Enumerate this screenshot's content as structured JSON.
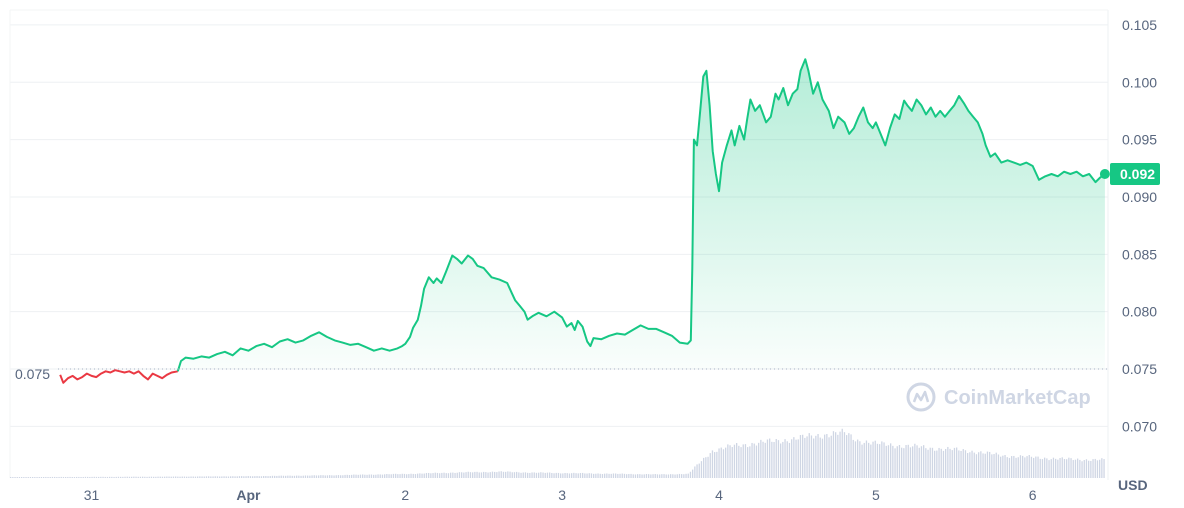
{
  "watermark": "CoinMarketCap",
  "colors": {
    "up": "#16c784",
    "down": "#ea3943",
    "volume": "#cfd6e4",
    "grid": "#eef0f3",
    "text": "#58667e"
  },
  "chart_data": {
    "type": "line",
    "currency": "USD",
    "ylim": [
      0.0655,
      0.1063
    ],
    "yticks": [
      "0.105",
      "0.100",
      "0.095",
      "0.090",
      "0.085",
      "0.080",
      "0.075",
      "0.070"
    ],
    "ytick_values": [
      0.105,
      0.1,
      0.095,
      0.09,
      0.085,
      0.08,
      0.075,
      0.07
    ],
    "ylabel": "USD",
    "xlabels": [
      {
        "label": "31",
        "day": 0.0,
        "bold": false
      },
      {
        "label": "Apr",
        "day": 1.0,
        "bold": true
      },
      {
        "label": "2",
        "day": 2.0,
        "bold": false
      },
      {
        "label": "3",
        "day": 3.0,
        "bold": false
      },
      {
        "label": "4",
        "day": 4.0,
        "bold": false
      },
      {
        "label": "5",
        "day": 5.0,
        "bold": false
      },
      {
        "label": "6",
        "day": 6.0,
        "bold": false
      }
    ],
    "x_range": [
      -0.52,
      6.48
    ],
    "open_price": 0.075,
    "open_price_label": "0.075",
    "current_price": 0.092,
    "current_price_label": "0.092",
    "price_series": [
      [
        -0.2,
        0.0745
      ],
      [
        -0.18,
        0.0738
      ],
      [
        -0.15,
        0.0742
      ],
      [
        -0.12,
        0.0744
      ],
      [
        -0.09,
        0.0741
      ],
      [
        -0.06,
        0.0743
      ],
      [
        -0.03,
        0.0746
      ],
      [
        0.0,
        0.0744
      ],
      [
        0.03,
        0.0743
      ],
      [
        0.06,
        0.0746
      ],
      [
        0.09,
        0.0748
      ],
      [
        0.12,
        0.0747
      ],
      [
        0.15,
        0.0749
      ],
      [
        0.18,
        0.0748
      ],
      [
        0.21,
        0.0747
      ],
      [
        0.24,
        0.0748
      ],
      [
        0.27,
        0.0746
      ],
      [
        0.3,
        0.0748
      ],
      [
        0.33,
        0.0744
      ],
      [
        0.36,
        0.0741
      ],
      [
        0.39,
        0.0746
      ],
      [
        0.42,
        0.0744
      ],
      [
        0.45,
        0.0742
      ],
      [
        0.48,
        0.0745
      ],
      [
        0.51,
        0.0747
      ],
      [
        0.55,
        0.0748
      ],
      [
        0.57,
        0.0757
      ],
      [
        0.6,
        0.076
      ],
      [
        0.65,
        0.0759
      ],
      [
        0.7,
        0.0761
      ],
      [
        0.75,
        0.076
      ],
      [
        0.8,
        0.0763
      ],
      [
        0.85,
        0.0765
      ],
      [
        0.9,
        0.0762
      ],
      [
        0.95,
        0.0768
      ],
      [
        1.0,
        0.0766
      ],
      [
        1.05,
        0.077
      ],
      [
        1.1,
        0.0772
      ],
      [
        1.15,
        0.0769
      ],
      [
        1.2,
        0.0774
      ],
      [
        1.25,
        0.0776
      ],
      [
        1.3,
        0.0773
      ],
      [
        1.35,
        0.0775
      ],
      [
        1.4,
        0.0779
      ],
      [
        1.45,
        0.0782
      ],
      [
        1.5,
        0.0778
      ],
      [
        1.55,
        0.0775
      ],
      [
        1.6,
        0.0773
      ],
      [
        1.65,
        0.0771
      ],
      [
        1.7,
        0.0772
      ],
      [
        1.75,
        0.0769
      ],
      [
        1.8,
        0.0766
      ],
      [
        1.85,
        0.0768
      ],
      [
        1.9,
        0.0766
      ],
      [
        1.95,
        0.0768
      ],
      [
        1.98,
        0.077
      ],
      [
        2.0,
        0.0772
      ],
      [
        2.03,
        0.0778
      ],
      [
        2.05,
        0.0786
      ],
      [
        2.08,
        0.0793
      ],
      [
        2.1,
        0.0805
      ],
      [
        2.12,
        0.082
      ],
      [
        2.15,
        0.083
      ],
      [
        2.18,
        0.0825
      ],
      [
        2.2,
        0.0829
      ],
      [
        2.23,
        0.0825
      ],
      [
        2.26,
        0.0835
      ],
      [
        2.28,
        0.0842
      ],
      [
        2.3,
        0.0849
      ],
      [
        2.33,
        0.0846
      ],
      [
        2.36,
        0.0842
      ],
      [
        2.4,
        0.0849
      ],
      [
        2.43,
        0.0846
      ],
      [
        2.46,
        0.084
      ],
      [
        2.5,
        0.0838
      ],
      [
        2.55,
        0.083
      ],
      [
        2.6,
        0.0828
      ],
      [
        2.65,
        0.0825
      ],
      [
        2.68,
        0.0816
      ],
      [
        2.7,
        0.081
      ],
      [
        2.73,
        0.0805
      ],
      [
        2.76,
        0.08
      ],
      [
        2.78,
        0.0793
      ],
      [
        2.81,
        0.0796
      ],
      [
        2.85,
        0.0799
      ],
      [
        2.9,
        0.0796
      ],
      [
        2.95,
        0.08
      ],
      [
        3.0,
        0.0795
      ],
      [
        3.03,
        0.0787
      ],
      [
        3.06,
        0.079
      ],
      [
        3.08,
        0.0784
      ],
      [
        3.1,
        0.0792
      ],
      [
        3.13,
        0.0787
      ],
      [
        3.16,
        0.0774
      ],
      [
        3.18,
        0.077
      ],
      [
        3.2,
        0.0777
      ],
      [
        3.25,
        0.0776
      ],
      [
        3.3,
        0.0779
      ],
      [
        3.35,
        0.0781
      ],
      [
        3.4,
        0.078
      ],
      [
        3.45,
        0.0784
      ],
      [
        3.5,
        0.0788
      ],
      [
        3.55,
        0.0785
      ],
      [
        3.6,
        0.0785
      ],
      [
        3.65,
        0.0782
      ],
      [
        3.7,
        0.0779
      ],
      [
        3.75,
        0.0773
      ],
      [
        3.8,
        0.0772
      ],
      [
        3.82,
        0.0775
      ],
      [
        3.83,
        0.0838
      ],
      [
        3.84,
        0.095
      ],
      [
        3.86,
        0.0945
      ],
      [
        3.88,
        0.0975
      ],
      [
        3.9,
        0.1005
      ],
      [
        3.92,
        0.101
      ],
      [
        3.94,
        0.098
      ],
      [
        3.96,
        0.094
      ],
      [
        3.98,
        0.092
      ],
      [
        4.0,
        0.0905
      ],
      [
        4.02,
        0.093
      ],
      [
        4.05,
        0.0945
      ],
      [
        4.08,
        0.0958
      ],
      [
        4.1,
        0.0945
      ],
      [
        4.13,
        0.0962
      ],
      [
        4.16,
        0.095
      ],
      [
        4.18,
        0.0968
      ],
      [
        4.2,
        0.0985
      ],
      [
        4.23,
        0.0975
      ],
      [
        4.26,
        0.098
      ],
      [
        4.3,
        0.0965
      ],
      [
        4.33,
        0.097
      ],
      [
        4.36,
        0.099
      ],
      [
        4.38,
        0.0985
      ],
      [
        4.41,
        0.0995
      ],
      [
        4.44,
        0.098
      ],
      [
        4.47,
        0.099
      ],
      [
        4.5,
        0.0994
      ],
      [
        4.52,
        0.101
      ],
      [
        4.55,
        0.102
      ],
      [
        4.57,
        0.101
      ],
      [
        4.6,
        0.099
      ],
      [
        4.63,
        0.1
      ],
      [
        4.66,
        0.0985
      ],
      [
        4.7,
        0.0975
      ],
      [
        4.73,
        0.096
      ],
      [
        4.76,
        0.097
      ],
      [
        4.8,
        0.0965
      ],
      [
        4.83,
        0.0955
      ],
      [
        4.86,
        0.096
      ],
      [
        4.89,
        0.097
      ],
      [
        4.92,
        0.0978
      ],
      [
        4.95,
        0.0965
      ],
      [
        4.98,
        0.096
      ],
      [
        5.0,
        0.0965
      ],
      [
        5.03,
        0.0955
      ],
      [
        5.06,
        0.0945
      ],
      [
        5.09,
        0.096
      ],
      [
        5.12,
        0.0972
      ],
      [
        5.15,
        0.0968
      ],
      [
        5.18,
        0.0984
      ],
      [
        5.2,
        0.098
      ],
      [
        5.23,
        0.0975
      ],
      [
        5.26,
        0.0985
      ],
      [
        5.29,
        0.098
      ],
      [
        5.32,
        0.0972
      ],
      [
        5.35,
        0.0978
      ],
      [
        5.38,
        0.097
      ],
      [
        5.41,
        0.0975
      ],
      [
        5.44,
        0.097
      ],
      [
        5.47,
        0.0975
      ],
      [
        5.5,
        0.098
      ],
      [
        5.53,
        0.0988
      ],
      [
        5.56,
        0.0982
      ],
      [
        5.59,
        0.0975
      ],
      [
        5.62,
        0.097
      ],
      [
        5.65,
        0.0965
      ],
      [
        5.68,
        0.0955
      ],
      [
        5.7,
        0.0945
      ],
      [
        5.73,
        0.0935
      ],
      [
        5.76,
        0.0938
      ],
      [
        5.8,
        0.093
      ],
      [
        5.84,
        0.0932
      ],
      [
        5.88,
        0.093
      ],
      [
        5.92,
        0.0928
      ],
      [
        5.96,
        0.093
      ],
      [
        6.0,
        0.0927
      ],
      [
        6.04,
        0.0915
      ],
      [
        6.08,
        0.0918
      ],
      [
        6.12,
        0.092
      ],
      [
        6.16,
        0.0918
      ],
      [
        6.2,
        0.0922
      ],
      [
        6.24,
        0.092
      ],
      [
        6.28,
        0.0922
      ],
      [
        6.32,
        0.0918
      ],
      [
        6.36,
        0.092
      ],
      [
        6.4,
        0.0913
      ],
      [
        6.43,
        0.0917
      ],
      [
        6.46,
        0.092
      ]
    ],
    "volume_series": [
      [
        -0.52,
        0.01
      ],
      [
        0.0,
        0.012
      ],
      [
        0.5,
        0.015
      ],
      [
        1.0,
        0.02
      ],
      [
        1.5,
        0.03
      ],
      [
        2.0,
        0.045
      ],
      [
        2.3,
        0.06
      ],
      [
        2.6,
        0.07
      ],
      [
        2.8,
        0.06
      ],
      [
        3.2,
        0.05
      ],
      [
        3.6,
        0.04
      ],
      [
        3.8,
        0.045
      ],
      [
        3.86,
        0.15
      ],
      [
        3.95,
        0.3
      ],
      [
        4.1,
        0.36
      ],
      [
        4.3,
        0.4
      ],
      [
        4.5,
        0.44
      ],
      [
        4.65,
        0.48
      ],
      [
        4.8,
        0.5
      ],
      [
        4.88,
        0.42
      ],
      [
        5.0,
        0.38
      ],
      [
        5.3,
        0.34
      ],
      [
        5.6,
        0.3
      ],
      [
        5.8,
        0.25
      ],
      [
        6.0,
        0.23
      ],
      [
        6.2,
        0.21
      ],
      [
        6.46,
        0.2
      ]
    ],
    "volume_max_band_px": 90
  }
}
